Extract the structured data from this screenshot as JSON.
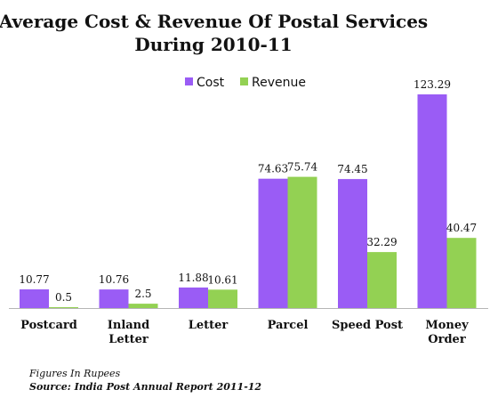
{
  "chart_data": {
    "type": "bar",
    "title": [
      "Average Cost & Revenue Of Postal Services",
      "During 2010-11"
    ],
    "xlabel": "",
    "ylabel": "",
    "categories": [
      [
        "Postcard"
      ],
      [
        "Inland",
        "Letter"
      ],
      [
        "Letter"
      ],
      [
        "Parcel"
      ],
      [
        "Speed Post"
      ],
      [
        "Money",
        "Order"
      ]
    ],
    "series": [
      {
        "name": "Cost",
        "color": "#9a5cf5",
        "values": [
          10.77,
          10.76,
          11.88,
          74.63,
          74.45,
          123.29
        ],
        "labels": [
          "10.77",
          "10.76",
          "11.88",
          "74.63",
          "74.45",
          "123.29"
        ]
      },
      {
        "name": "Revenue",
        "color": "#93d153",
        "values": [
          0.5,
          2.5,
          10.61,
          75.74,
          32.29,
          40.47
        ],
        "labels": [
          "0.5",
          "2.5",
          "10.61",
          "75.74",
          "32.29",
          "40.47"
        ]
      }
    ],
    "ylim": [
      0,
      123.29
    ],
    "grid": false,
    "legend": "top-center",
    "annotations": [
      "Figures In Rupees",
      "Source: India Post Annual Report 2011-12"
    ]
  }
}
